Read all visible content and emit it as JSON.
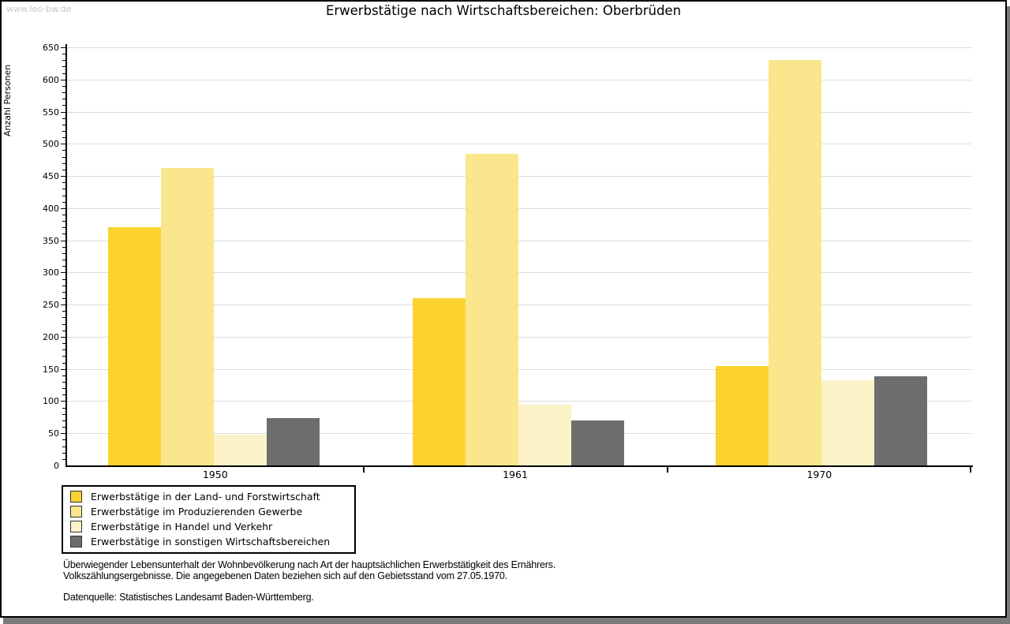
{
  "watermark": "www.leo-bw.de",
  "title": "Erwerbstätige nach Wirtschaftsbereichen: Oberbrüden",
  "chart_data": {
    "type": "bar",
    "title": "Erwerbstätige nach Wirtschaftsbereichen: Oberbrüden",
    "xlabel": "",
    "ylabel": "Anzahl Personen",
    "ylim": [
      0,
      650
    ],
    "ytick_step": 50,
    "ytick_minor_step": 10,
    "grid": true,
    "legend_position": "bottom-left",
    "categories": [
      "1950",
      "1961",
      "1970"
    ],
    "series": [
      {
        "name": "Erwerbstätige in der Land- und Forstwirtschaft",
        "color": "#fcd22f",
        "values": [
          370,
          260,
          154
        ]
      },
      {
        "name": "Erwerbstätige im Produzierenden Gewerbe",
        "color": "#fae68c",
        "values": [
          462,
          485,
          630
        ]
      },
      {
        "name": "Erwerbstätige in Handel und Verkehr",
        "color": "#fbf2c7",
        "values": [
          48,
          94,
          133
        ]
      },
      {
        "name": "Erwerbstätige in sonstigen Wirtschaftsbereichen",
        "color": "#6d6d6d",
        "values": [
          73,
          70,
          138
        ]
      }
    ]
  },
  "footnotes": {
    "line1": "Überwiegender Lebensunterhalt der Wohnbevölkerung nach Art der hauptsächlichen Erwerbstätigkeit des Ernährers.",
    "line2": "Volkszählungsergebnisse. Die angegebenen Daten beziehen sich auf den Gebietsstand vom 27.05.1970.",
    "source": "Datenquelle: Statistisches Landesamt Baden-Württemberg."
  }
}
